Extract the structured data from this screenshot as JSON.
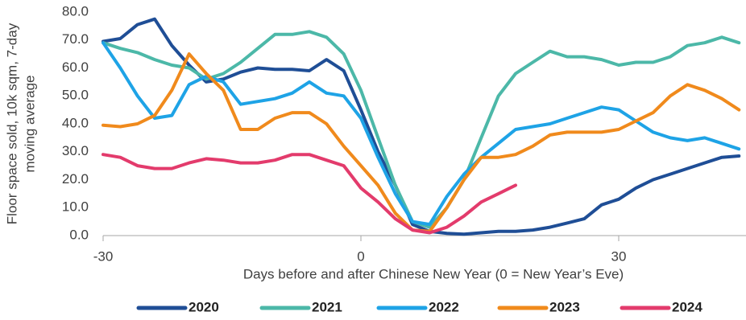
{
  "chart_data": {
    "type": "line",
    "ylabel": [
      "Floor space sold, 10k sqm, 7-day",
      "moving average"
    ],
    "xlabel": "Days before and after Chinese New Year (0 = New Year’s Eve)",
    "x": [
      -30,
      -28,
      -26,
      -24,
      -22,
      -20,
      -18,
      -16,
      -14,
      -12,
      -10,
      -8,
      -6,
      -4,
      -2,
      0,
      2,
      4,
      6,
      8,
      10,
      12,
      14,
      16,
      18,
      20,
      22,
      24,
      26,
      28,
      30,
      32,
      34,
      36,
      38,
      40,
      42,
      44
    ],
    "series": [
      {
        "name": "2020",
        "color": "#1f4e96",
        "values": [
          69.5,
          70.5,
          75.5,
          77.5,
          68,
          61,
          55,
          56,
          58.5,
          60,
          59.5,
          59.5,
          59,
          63,
          59,
          45,
          30,
          18,
          4,
          1.5,
          0.8,
          0.5,
          1,
          1.5,
          1.5,
          2,
          3,
          4.5,
          6,
          11,
          13,
          17,
          20,
          22,
          24,
          26,
          28,
          28.5
        ]
      },
      {
        "name": "2021",
        "color": "#4cb8a8",
        "values": [
          69,
          67,
          65.5,
          63,
          61,
          60,
          56,
          58,
          62,
          67,
          72,
          72,
          73,
          71,
          65,
          52,
          35,
          18,
          5,
          3,
          10,
          20,
          35,
          50,
          58,
          62,
          66,
          64,
          64,
          63,
          61,
          62,
          62,
          64,
          68,
          69,
          71,
          69
        ]
      },
      {
        "name": "2022",
        "color": "#1ea3e6",
        "values": [
          69,
          60,
          50,
          42,
          43,
          54,
          57,
          55,
          47,
          48,
          49,
          51,
          55,
          51,
          50,
          42,
          28,
          15,
          5,
          4,
          14,
          22,
          28,
          33,
          38,
          39,
          40,
          42,
          44,
          46,
          45,
          41,
          37,
          35,
          34,
          35,
          33,
          31
        ]
      },
      {
        "name": "2023",
        "color": "#f08a1c",
        "values": [
          39.5,
          39,
          40,
          43,
          52,
          65,
          58,
          52,
          38,
          38,
          42,
          44,
          44,
          40,
          32,
          25,
          18,
          8,
          2,
          1.5,
          10,
          20,
          28,
          28,
          29,
          32,
          36,
          37,
          37,
          37,
          38,
          41,
          44,
          50,
          54,
          52,
          49,
          45
        ]
      },
      {
        "name": "2024",
        "color": "#e33b6c",
        "values": [
          29,
          28,
          25,
          24,
          24,
          26,
          27.5,
          27,
          26,
          26,
          27,
          29,
          29,
          27,
          25,
          17,
          12,
          6,
          2,
          1,
          3,
          7,
          12,
          15,
          18,
          null,
          null,
          null,
          null,
          null,
          null,
          null,
          null,
          null,
          null,
          null,
          null,
          null
        ]
      }
    ],
    "xlim": [
      -30,
      45
    ],
    "xticks": [
      -30,
      0,
      30
    ],
    "ylim": [
      0,
      80
    ],
    "yticks": [
      {
        "value": 0,
        "label": "0.0"
      },
      {
        "value": 10,
        "label": "10.0"
      },
      {
        "value": 20,
        "label": "20.0"
      },
      {
        "value": 30,
        "label": "30.0"
      },
      {
        "value": 40,
        "label": "40.0"
      },
      {
        "value": 50,
        "label": "50.0"
      },
      {
        "value": 60,
        "label": "60.0"
      },
      {
        "value": 70,
        "label": "70.0"
      },
      {
        "value": 80,
        "label": "80.0"
      }
    ],
    "legend": "bottom"
  }
}
